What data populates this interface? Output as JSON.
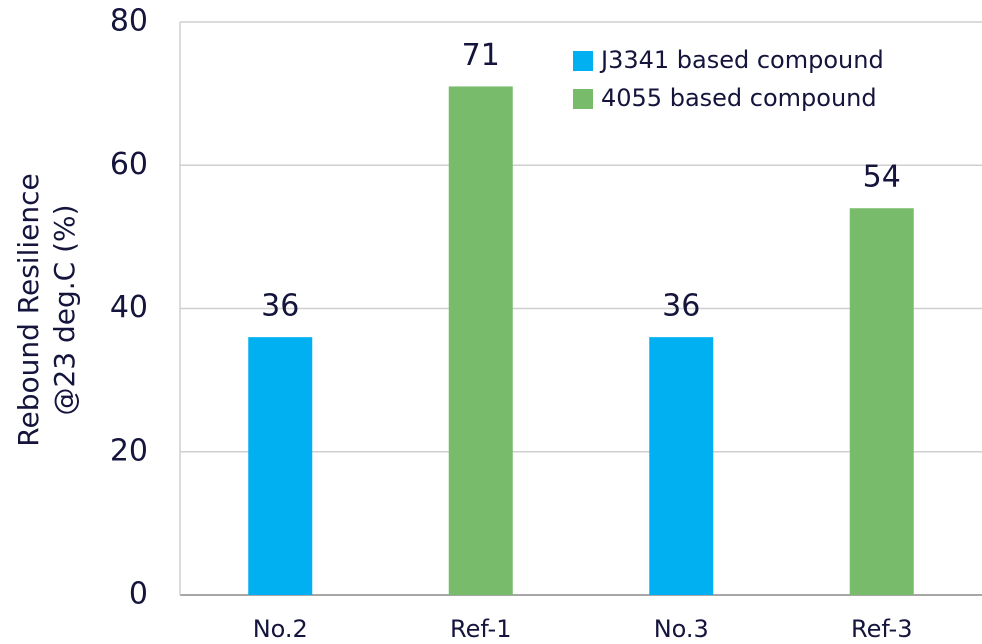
{
  "chart_data": {
    "type": "bar",
    "ylabel": [
      "Rebound Resilience",
      "@23 deg.C (%)"
    ],
    "categories": [
      "No.2",
      "Ref-1",
      "No.3",
      "Ref-3"
    ],
    "series": [
      {
        "name": "J3341 based compound",
        "color": "#00b0f0",
        "values": [
          36,
          null,
          36,
          null
        ]
      },
      {
        "name": "4055 based compound",
        "color": "#77bb6b",
        "values": [
          null,
          71,
          null,
          54
        ]
      }
    ],
    "ylim": [
      0,
      80
    ],
    "yticks": [
      0,
      20,
      40,
      60,
      80
    ],
    "grid": true,
    "legend": "top-right"
  }
}
